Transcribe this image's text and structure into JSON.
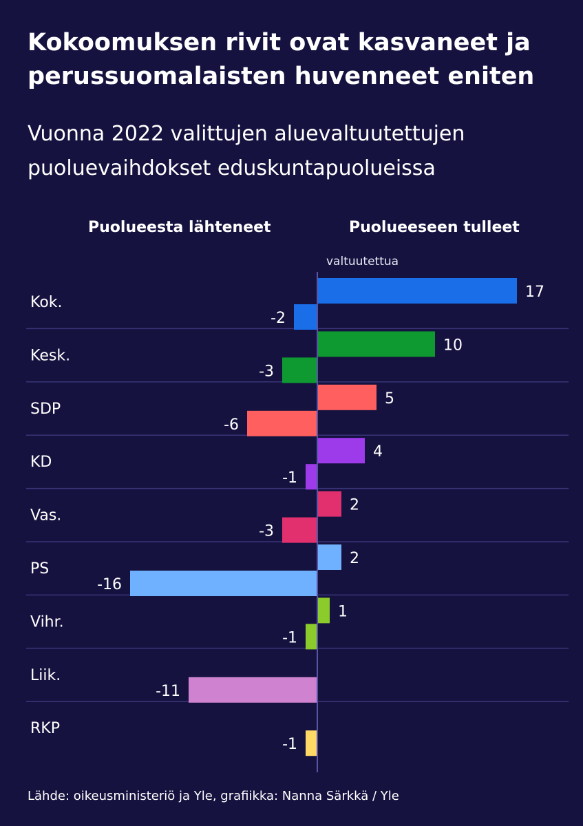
{
  "title": "Kokoomuksen rivit ovat kasvaneet ja perussuomalaisten huvenneet eniten",
  "subtitle": "Vuonna 2022 valittujen aluevaltuutettujen puoluevaihdokset eduskuntapuolueissa",
  "column_left_label": "Puolueesta lähteneet",
  "column_right_label": "Puolueeseen tulleet",
  "unit_label": "valtuutettua",
  "source": "Lähde: oikeusministeriö ja Yle, grafiikka: Nanna Särkkä / Yle",
  "colors": {
    "background": "#15123f",
    "gridline": "#3a357a",
    "axis": "#5a54a8"
  },
  "chart_data": {
    "type": "bar",
    "orientation": "horizontal",
    "categories": [
      "Kok.",
      "Kesk.",
      "SDP",
      "KD",
      "Vas.",
      "PS",
      "Vihr.",
      "Liik.",
      "RKP"
    ],
    "series": [
      {
        "name": "Puolueeseen tulleet",
        "values": [
          17,
          10,
          5,
          4,
          2,
          2,
          1,
          null,
          null
        ]
      },
      {
        "name": "Puolueesta lähteneet",
        "values": [
          -2,
          -3,
          -6,
          -1,
          -3,
          -16,
          -1,
          -11,
          -1
        ]
      }
    ],
    "bar_colors": [
      "#1a6ee8",
      "#0e9a30",
      "#ff5f5f",
      "#9d3bea",
      "#e2306f",
      "#70b1ff",
      "#8ccb2c",
      "#cf82cf",
      "#ffd866"
    ],
    "xlim": [
      -16,
      17
    ]
  }
}
